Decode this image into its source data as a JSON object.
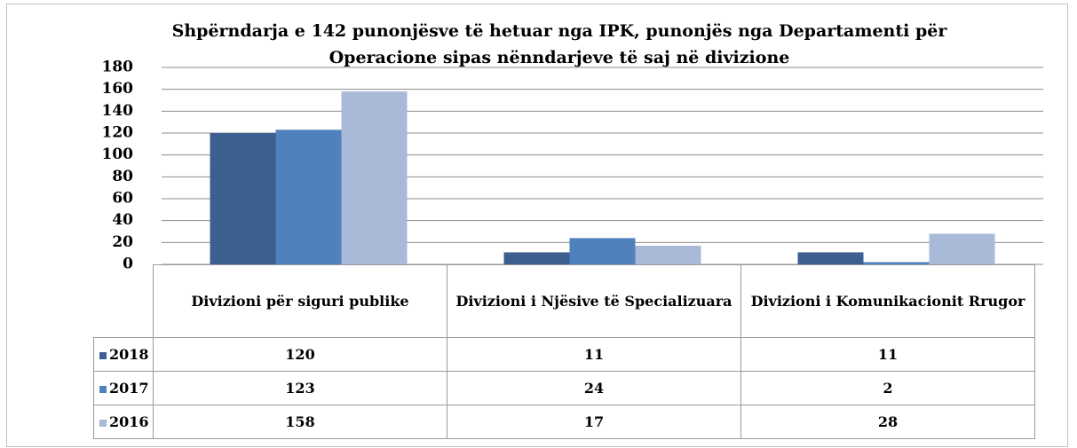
{
  "chart_data": {
    "type": "bar",
    "title": "Shpërndarja e 142 punonjësve të hetuar nga IPK, punonjës nga Departamenti për Operacione sipas nënndarjeve të saj në divizione",
    "categories": [
      "Divizioni për siguri publike",
      "Divizioni i Njësive të Specializuara",
      "Divizioni i Komunikacionit Rrugor"
    ],
    "series": [
      {
        "name": "2018",
        "color": "#3d5f90",
        "values": [
          120,
          11,
          11
        ]
      },
      {
        "name": "2017",
        "color": "#4f81bd",
        "values": [
          123,
          24,
          2
        ]
      },
      {
        "name": "2016",
        "color": "#a9b9d8",
        "values": [
          158,
          17,
          28
        ]
      }
    ],
    "ylim": [
      0,
      180
    ],
    "yticks": [
      0,
      20,
      40,
      60,
      80,
      100,
      120,
      140,
      160,
      180
    ],
    "grid": true
  }
}
